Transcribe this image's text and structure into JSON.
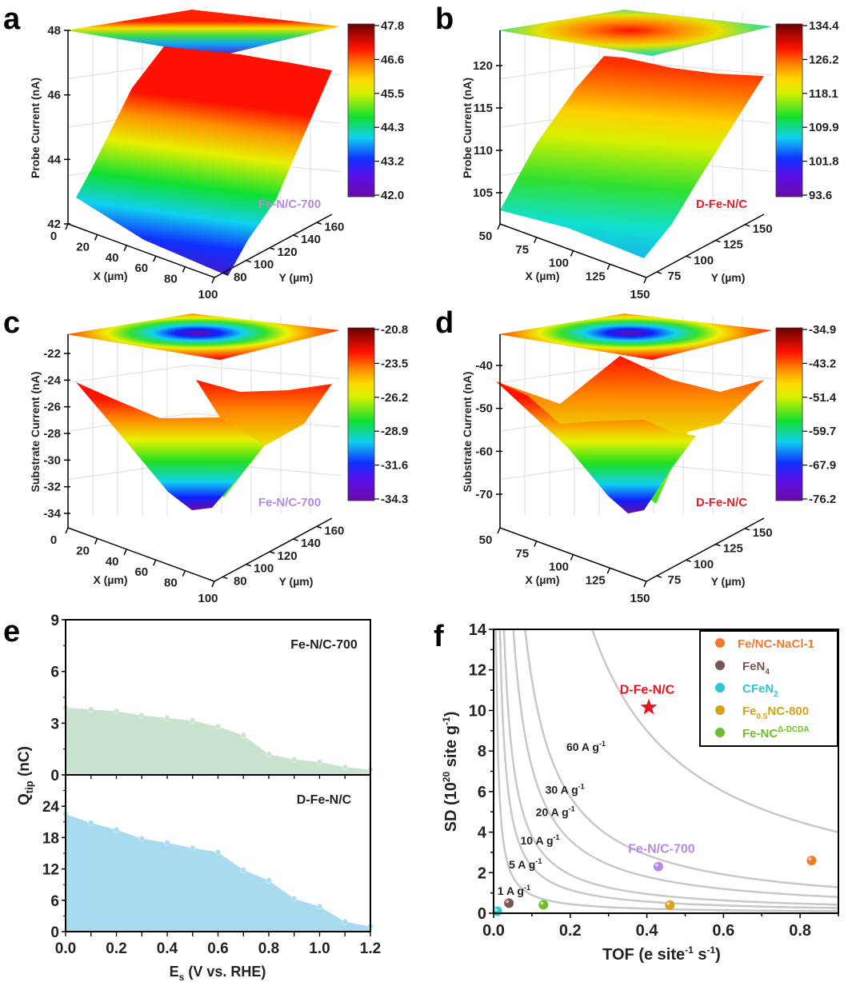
{
  "panels": {
    "a": {
      "letter": "a",
      "type": "surface3d",
      "zlabel": "Probe Current (nA)",
      "xlabel": "X (µm)",
      "ylabel": "Y (µm)",
      "z_ticks": [
        "42",
        "44",
        "46",
        "48"
      ],
      "x_ticks": [
        "0",
        "20",
        "40",
        "60",
        "80",
        "100"
      ],
      "y_ticks": [
        "80",
        "100",
        "120",
        "140",
        "160"
      ],
      "colorbar_ticks": [
        "47.8",
        "46.6",
        "45.5",
        "44.3",
        "43.2",
        "42.0"
      ],
      "sample_label": "Fe-N/C-700",
      "sample_color": "#b28be0"
    },
    "b": {
      "letter": "b",
      "type": "surface3d",
      "zlabel": "Probe Current (nA)",
      "xlabel": "X (µm)",
      "ylabel": "Y (µm)",
      "z_ticks": [
        "105",
        "110",
        "115",
        "120"
      ],
      "x_ticks": [
        "50",
        "75",
        "100",
        "125",
        "150"
      ],
      "y_ticks": [
        "75",
        "100",
        "125",
        "150"
      ],
      "colorbar_ticks": [
        "134.4",
        "126.2",
        "118.1",
        "109.9",
        "101.8",
        "93.6"
      ],
      "sample_label": "D-Fe-N/C",
      "sample_color": "#e0202a"
    },
    "c": {
      "letter": "c",
      "type": "surface3d",
      "zlabel": "Substrate Current (nA)",
      "xlabel": "X (µm)",
      "ylabel": "Y (µm)",
      "z_ticks": [
        "-22",
        "-24",
        "-26",
        "-28",
        "-30",
        "-32",
        "-34"
      ],
      "x_ticks": [
        "0",
        "20",
        "40",
        "60",
        "80",
        "100"
      ],
      "y_ticks": [
        "80",
        "100",
        "120",
        "140",
        "160"
      ],
      "colorbar_ticks": [
        "-20.8",
        "-23.5",
        "-26.2",
        "-28.9",
        "-31.6",
        "-34.3"
      ],
      "sample_label": "Fe-N/C-700",
      "sample_color": "#b28be0"
    },
    "d": {
      "letter": "d",
      "type": "surface3d",
      "zlabel": "Substrate Current (nA)",
      "xlabel": "X (µm)",
      "ylabel": "Y (µm)",
      "z_ticks": [
        "-40",
        "-50",
        "-60",
        "-70"
      ],
      "x_ticks": [
        "50",
        "75",
        "100",
        "125",
        "150"
      ],
      "y_ticks": [
        "75",
        "100",
        "125",
        "150"
      ],
      "colorbar_ticks": [
        "-34.9",
        "-43.2",
        "-51.4",
        "-59.7",
        "-67.9",
        "-76.2"
      ],
      "sample_label": "D-Fe-N/C",
      "sample_color": "#e0202a"
    },
    "e": {
      "letter": "e"
    },
    "f": {
      "letter": "f"
    }
  },
  "chart_data": [
    {
      "panel": "e",
      "type": "area",
      "xlabel": "E_s (V vs. RHE)",
      "ylabel": "Q_tip (nC)",
      "x_ticks": [
        "0.0",
        "0.2",
        "0.4",
        "0.6",
        "0.8",
        "1.0",
        "1.2"
      ],
      "xlim": [
        0,
        1.2
      ],
      "x": [
        0.0,
        0.1,
        0.2,
        0.3,
        0.4,
        0.5,
        0.6,
        0.7,
        0.8,
        0.9,
        1.0,
        1.1,
        1.2
      ],
      "series": [
        {
          "name": "Fe-N/C-700",
          "color": "#c9e3cf",
          "ylim": [
            0,
            9
          ],
          "y_ticks": [
            "0",
            "3",
            "6",
            "9"
          ],
          "values": [
            3.9,
            3.8,
            3.7,
            3.45,
            3.3,
            3.15,
            2.8,
            2.3,
            1.2,
            0.9,
            0.75,
            0.45,
            0.3
          ]
        },
        {
          "name": "D-Fe-N/C",
          "color": "#a8dbf0",
          "ylim": [
            0,
            30
          ],
          "y_ticks": [
            "0",
            "6",
            "12",
            "18",
            "24"
          ],
          "values": [
            22.5,
            20.8,
            19.5,
            17.8,
            17.0,
            16.0,
            15.2,
            11.8,
            9.8,
            6.3,
            4.8,
            1.9,
            1.0
          ]
        }
      ]
    },
    {
      "panel": "f",
      "type": "scatter",
      "xlabel": "TOF (e site⁻¹ s⁻¹)",
      "ylabel": "SD (10²⁰ site g⁻¹)",
      "xlim": [
        0,
        0.9
      ],
      "ylim": [
        0,
        14
      ],
      "x_ticks": [
        "0.0",
        "0.2",
        "0.4",
        "0.6",
        "0.8"
      ],
      "y_ticks": [
        "0",
        "2",
        "4",
        "6",
        "8",
        "10",
        "12",
        "14"
      ],
      "iso_current_lines": [
        {
          "label": "1 A g⁻¹",
          "value": 1
        },
        {
          "label": "5 A g⁻¹",
          "value": 5
        },
        {
          "label": "10 A g⁻¹",
          "value": 10
        },
        {
          "label": "20 A g⁻¹",
          "value": 20
        },
        {
          "label": "30 A g⁻¹",
          "value": 30
        },
        {
          "label": "60 A g⁻¹",
          "value": 60
        }
      ],
      "points": [
        {
          "name": "D-Fe-N/C",
          "x": 0.405,
          "y": 10.15,
          "marker": "star",
          "color": "#e8141e",
          "labeled": true
        },
        {
          "name": "Fe-N/C-700",
          "x": 0.43,
          "y": 2.3,
          "marker": "circle",
          "color": "#b48ae6",
          "labeled": true
        },
        {
          "name": "Fe/NC-NaCl-1",
          "x": 0.83,
          "y": 2.6,
          "marker": "circle",
          "color": "#f07a2a"
        },
        {
          "name": "FeN4",
          "x": 0.04,
          "y": 0.5,
          "marker": "circle",
          "color": "#7b5556"
        },
        {
          "name": "CFeN2",
          "x": 0.01,
          "y": 0.1,
          "marker": "circle",
          "color": "#2cc7d2"
        },
        {
          "name": "Fe0.5NC-800",
          "x": 0.46,
          "y": 0.4,
          "marker": "circle",
          "color": "#d6a21c"
        },
        {
          "name": "Fe-NCΔ-DCDA",
          "x": 0.13,
          "y": 0.42,
          "marker": "circle",
          "color": "#6bbf2a"
        }
      ],
      "legend": {
        "position": "top-right",
        "entries": [
          {
            "main": "Fe/NC-NaCl-1",
            "sub": "",
            "sup": "",
            "tail": "",
            "color": "#f07a2a",
            "text_color": "#f07a2a"
          },
          {
            "main": "FeN",
            "sub": "4",
            "sup": "",
            "tail": "",
            "color": "#7b5556",
            "text_color": "#7b5556"
          },
          {
            "main": "CFeN",
            "sub": "2",
            "sup": "",
            "tail": "",
            "color": "#2cc7d2",
            "text_color": "#2cc7d2"
          },
          {
            "main": "Fe",
            "sub": "0.5",
            "sup": "",
            "tail": "NC-800",
            "color": "#d6a21c",
            "text_color": "#d6a21c"
          },
          {
            "main": "Fe-NC",
            "sub": "",
            "sup": "Δ-DCDA",
            "tail": "",
            "color": "#6bbf2a",
            "text_color": "#6bbf2a"
          }
        ]
      }
    }
  ]
}
